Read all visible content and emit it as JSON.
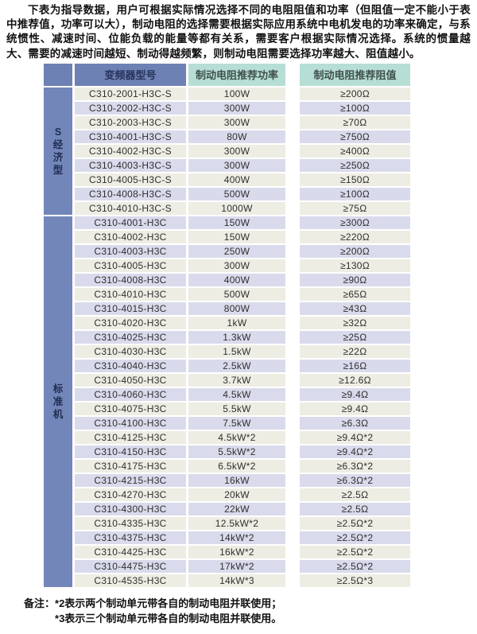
{
  "intro_paragraph": "下表为指导数据，用户可根据实际情况选择不同的电阻阻值和功率（但阻值一定不能小于表中推荐值，功率可以大），制动电阻的选择需要根据实际应用系统中电机发电的功率来确定，与系统惯性、减速时间、位能负载的能量等都有关系，需要客户根据实际情况选择。系统的惯量越大、需要的减速时间越短、制动得越频繁，则制动电阻需要选择功率越大、阻值越小。",
  "table": {
    "headers": {
      "model": "变频器型号",
      "power": "制动电阻推荐功率",
      "resistance": "制动电阻推荐阻值"
    },
    "groups": [
      {
        "label": "S经济型",
        "label_chars": [
          "S",
          "经",
          "济",
          "型"
        ],
        "rows": [
          {
            "model": "C310-2001-H3C-S",
            "power": "100W",
            "resistance": "≥200Ω"
          },
          {
            "model": "C310-2002-H3C-S",
            "power": "300W",
            "resistance": "≥100Ω"
          },
          {
            "model": "C310-2003-H3C-S",
            "power": "300W",
            "resistance": "≥70Ω"
          },
          {
            "model": "C310-4001-H3C-S",
            "power": "80W",
            "resistance": "≥750Ω"
          },
          {
            "model": "C310-4002-H3C-S",
            "power": "300W",
            "resistance": "≥400Ω"
          },
          {
            "model": "C310-4003-H3C-S",
            "power": "300W",
            "resistance": "≥250Ω"
          },
          {
            "model": "C310-4005-H3C-S",
            "power": "400W",
            "resistance": "≥150Ω"
          },
          {
            "model": "C310-4008-H3C-S",
            "power": "500W",
            "resistance": "≥100Ω"
          },
          {
            "model": "C310-4010-H3C-S",
            "power": "1000W",
            "resistance": "≥75Ω"
          }
        ]
      },
      {
        "label": "标准机",
        "label_chars": [
          "标",
          "准",
          "机"
        ],
        "rows": [
          {
            "model": "C310-4001-H3C",
            "power": "150W",
            "resistance": "≥300Ω"
          },
          {
            "model": "C310-4002-H3C",
            "power": "150W",
            "resistance": "≥220Ω"
          },
          {
            "model": "C310-4003-H3C",
            "power": "250W",
            "resistance": "≥200Ω"
          },
          {
            "model": "C310-4005-H3C",
            "power": "300W",
            "resistance": "≥130Ω"
          },
          {
            "model": "C310-4008-H3C",
            "power": "400W",
            "resistance": "≥90Ω"
          },
          {
            "model": "C310-4010-H3C",
            "power": "500W",
            "resistance": "≥65Ω"
          },
          {
            "model": "C310-4015-H3C",
            "power": "800W",
            "resistance": "≥43Ω"
          },
          {
            "model": "C310-4020-H3C",
            "power": "1kW",
            "resistance": "≥32Ω"
          },
          {
            "model": "C310-4025-H3C",
            "power": "1.3kW",
            "resistance": "≥25Ω"
          },
          {
            "model": "C310-4030-H3C",
            "power": "1.5kW",
            "resistance": "≥22Ω"
          },
          {
            "model": "C310-4040-H3C",
            "power": "2.5kW",
            "resistance": "≥16Ω"
          },
          {
            "model": "C310-4050-H3C",
            "power": "3.7kW",
            "resistance": "≥12.6Ω"
          },
          {
            "model": "C310-4060-H3C",
            "power": "4.5kW",
            "resistance": "≥9.4Ω"
          },
          {
            "model": "C310-4075-H3C",
            "power": "5.5kW",
            "resistance": "≥9.4Ω"
          },
          {
            "model": "C310-4100-H3C",
            "power": "7.5kW",
            "resistance": "≥6.3Ω"
          },
          {
            "model": "C310-4125-H3C",
            "power": "4.5kW*2",
            "resistance": "≥9.4Ω*2"
          },
          {
            "model": "C310-4150-H3C",
            "power": "5.5kW*2",
            "resistance": "≥9.4Ω*2"
          },
          {
            "model": "C310-4175-H3C",
            "power": "6.5kW*2",
            "resistance": "≥6.3Ω*2"
          },
          {
            "model": "C310-4215-H3C",
            "power": "16kW",
            "resistance": "≥6.3Ω*2"
          },
          {
            "model": "C310-4270-H3C",
            "power": "20kW",
            "resistance": "≥2.5Ω"
          },
          {
            "model": "C310-4300-H3C",
            "power": "22kW",
            "resistance": "≥2.5Ω"
          },
          {
            "model": "C310-4335-H3C",
            "power": "12.5kW*2",
            "resistance": "≥2.5Ω*2"
          },
          {
            "model": "C310-4375-H3C",
            "power": "14kW*2",
            "resistance": "≥2.5Ω*2"
          },
          {
            "model": "C310-4425-H3C",
            "power": "16kW*2",
            "resistance": "≥2.5Ω*2"
          },
          {
            "model": "C310-4475-H3C",
            "power": "17kW*2",
            "resistance": "≥2.5Ω*2"
          },
          {
            "model": "C310-4535-H3C",
            "power": "14kW*3",
            "resistance": "≥2.5Ω*3"
          }
        ]
      }
    ]
  },
  "notes": {
    "prefix": "备注：",
    "lines": [
      "*2表示两个制动单元带各自的制动电阻并联使用；",
      "*3表示三个制动单元带各自的制动电阻并联使用。"
    ]
  },
  "colors": {
    "header_blue": "#6e81b4",
    "group_blue": "#7386b9",
    "header_teal": "#b6ded5",
    "row_ivory": "#eeede4",
    "row_lavender": "#d9dbec",
    "header_text_navy": "#25335a"
  }
}
